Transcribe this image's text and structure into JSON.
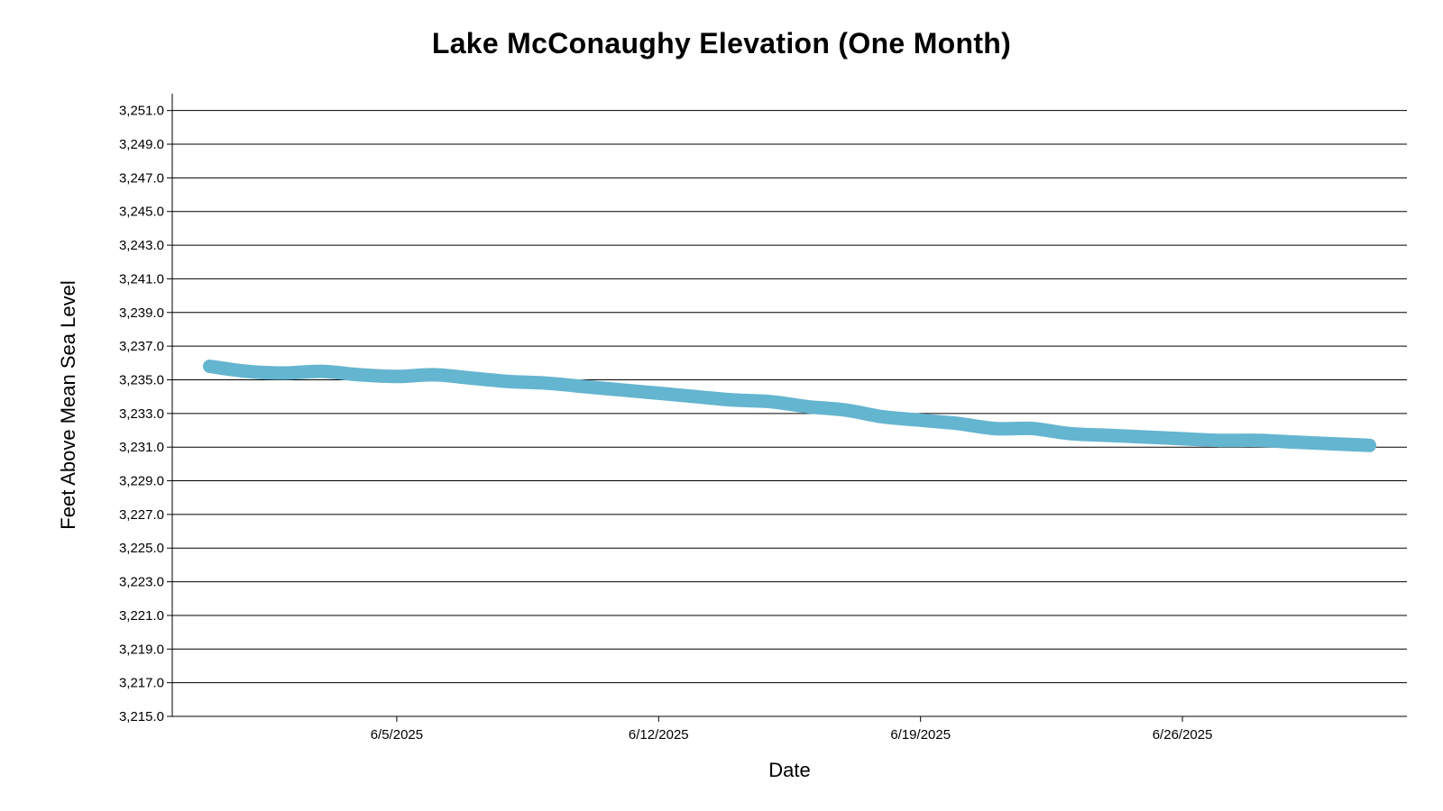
{
  "chart_data": {
    "type": "line",
    "title": "Lake McConaughy Elevation (One Month)",
    "xlabel": "Date",
    "ylabel": "Feet Above Mean Sea Level",
    "ylim": [
      3215.0,
      3252.0
    ],
    "yticks": [
      "3,215.0",
      "3,217.0",
      "3,219.0",
      "3,221.0",
      "3,223.0",
      "3,225.0",
      "3,227.0",
      "3,229.0",
      "3,231.0",
      "3,233.0",
      "3,235.0",
      "3,237.0",
      "3,239.0",
      "3,241.0",
      "3,243.0",
      "3,245.0",
      "3,247.0",
      "3,249.0",
      "3,251.0"
    ],
    "ytick_values": [
      3215,
      3217,
      3219,
      3221,
      3223,
      3225,
      3227,
      3229,
      3231,
      3233,
      3235,
      3237,
      3239,
      3241,
      3243,
      3245,
      3247,
      3249,
      3251
    ],
    "xlim": [
      "2025-05-30",
      "2025-07-02"
    ],
    "xticks": [
      "6/5/2025",
      "6/12/2025",
      "6/19/2025",
      "6/26/2025"
    ],
    "xtick_dates": [
      "2025-06-05",
      "2025-06-12",
      "2025-06-19",
      "2025-06-26"
    ],
    "grid": true,
    "legend": "none",
    "line_color": "#64b5cf",
    "series": [
      {
        "x": [
          "2025-05-31",
          "2025-06-01",
          "2025-06-02",
          "2025-06-03",
          "2025-06-04",
          "2025-06-05",
          "2025-06-06",
          "2025-06-07",
          "2025-06-08",
          "2025-06-09",
          "2025-06-10",
          "2025-06-11",
          "2025-06-12",
          "2025-06-13",
          "2025-06-14",
          "2025-06-15",
          "2025-06-16",
          "2025-06-17",
          "2025-06-18",
          "2025-06-19",
          "2025-06-20",
          "2025-06-21",
          "2025-06-22",
          "2025-06-23",
          "2025-06-24",
          "2025-06-25",
          "2025-06-26",
          "2025-06-27",
          "2025-06-28",
          "2025-06-29",
          "2025-06-30",
          "2025-07-01"
        ],
        "values": [
          3235.8,
          3235.5,
          3235.4,
          3235.5,
          3235.3,
          3235.2,
          3235.3,
          3235.1,
          3234.9,
          3234.8,
          3234.6,
          3234.4,
          3234.2,
          3234.0,
          3233.8,
          3233.7,
          3233.4,
          3233.2,
          3232.8,
          3232.6,
          3232.4,
          3232.1,
          3232.1,
          3231.8,
          3231.7,
          3231.6,
          3231.5,
          3231.4,
          3231.4,
          3231.3,
          3231.2,
          3231.1
        ]
      }
    ]
  }
}
